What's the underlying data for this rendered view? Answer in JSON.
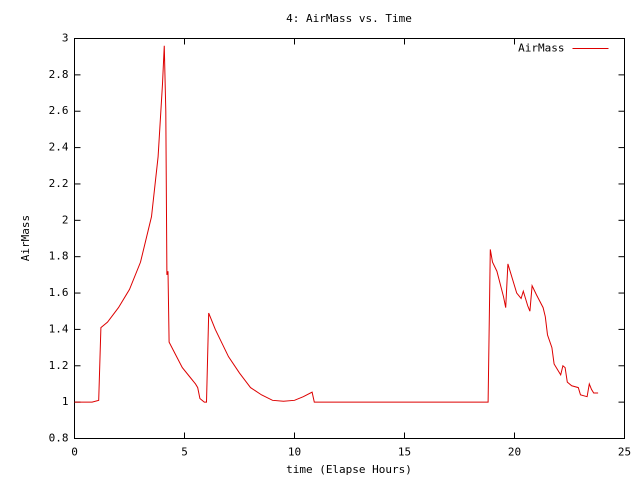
{
  "chart_data": {
    "type": "line",
    "title": "4: AirMass vs. Time",
    "xlabel": "time (Elapse Hours)",
    "ylabel": "AirMass",
    "x": [
      0,
      0.8,
      1.1,
      1.2,
      1.5,
      2.0,
      2.5,
      3.0,
      3.5,
      3.8,
      4.0,
      4.08,
      4.15,
      4.2,
      4.25,
      4.3,
      4.6,
      4.9,
      5.3,
      5.5,
      5.6,
      5.7,
      5.9,
      6.0,
      6.1,
      6.4,
      7.0,
      7.5,
      8.0,
      8.5,
      9.0,
      9.5,
      10.0,
      10.4,
      10.8,
      10.9,
      18.8,
      18.9,
      19.0,
      19.2,
      19.5,
      19.6,
      19.7,
      19.9,
      20.1,
      20.3,
      20.4,
      20.6,
      20.7,
      20.8,
      21.0,
      21.3,
      21.4,
      21.5,
      21.7,
      21.8,
      22.0,
      22.1,
      22.2,
      22.3,
      22.4,
      22.6,
      22.9,
      23.0,
      23.3,
      23.4,
      23.5,
      23.6,
      23.8
    ],
    "series": [
      {
        "name": "AirMass",
        "color": "#dd0000",
        "values": [
          1.0,
          1.0,
          1.01,
          1.41,
          1.44,
          1.52,
          1.62,
          1.77,
          2.02,
          2.35,
          2.75,
          2.96,
          2.6,
          1.7,
          1.72,
          1.33,
          1.26,
          1.19,
          1.13,
          1.1,
          1.08,
          1.02,
          1.0,
          1.0,
          1.49,
          1.4,
          1.25,
          1.16,
          1.08,
          1.04,
          1.01,
          1.005,
          1.01,
          1.03,
          1.055,
          1.0,
          1.0,
          1.84,
          1.77,
          1.72,
          1.58,
          1.52,
          1.76,
          1.68,
          1.6,
          1.57,
          1.61,
          1.53,
          1.5,
          1.64,
          1.59,
          1.52,
          1.47,
          1.37,
          1.3,
          1.21,
          1.17,
          1.15,
          1.2,
          1.19,
          1.11,
          1.09,
          1.08,
          1.04,
          1.03,
          1.1,
          1.07,
          1.05,
          1.05
        ]
      }
    ],
    "xlim": [
      0,
      25
    ],
    "ylim": [
      0.8,
      3
    ],
    "xticks": [
      0,
      5,
      10,
      15,
      20,
      25
    ],
    "yticks": [
      0.8,
      1,
      1.2,
      1.4,
      1.6,
      1.8,
      2,
      2.2,
      2.4,
      2.6,
      2.8,
      3
    ],
    "legend": "top-right"
  }
}
